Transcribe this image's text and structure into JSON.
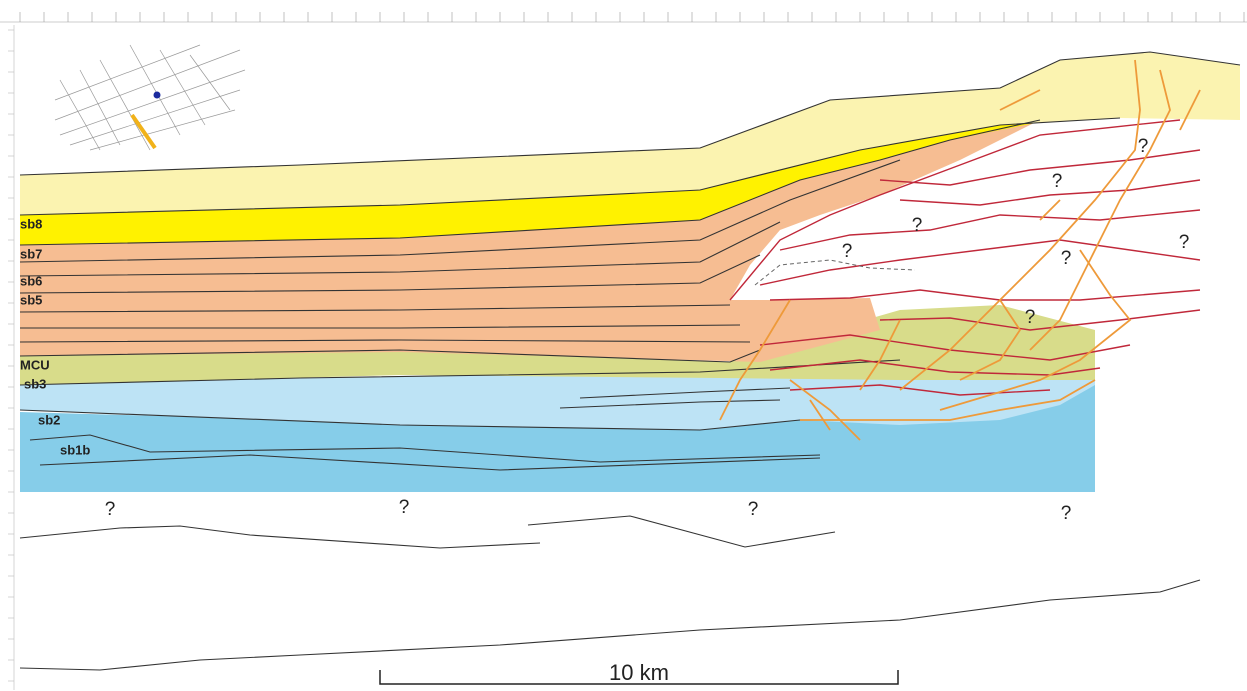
{
  "labels": [
    "sb8",
    "sb7",
    "sb6",
    "sb5",
    "MCU",
    "sb3",
    "sb2",
    "sb1b"
  ],
  "question_marks": [
    "?",
    "?",
    "?",
    "?",
    "?",
    "?",
    "?",
    "?",
    "?",
    "?",
    "?"
  ],
  "scale_bar": "10 km"
}
